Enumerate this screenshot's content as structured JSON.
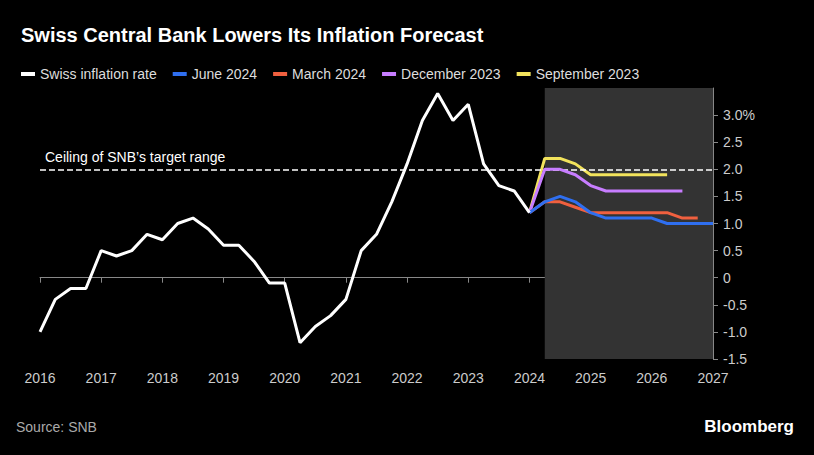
{
  "chart_data": {
    "type": "line",
    "title": "Swiss Central Bank Lowers Its Inflation Forecast",
    "source": "Source: SNB",
    "brand": "Bloomberg",
    "legend": "top-left",
    "grid": false,
    "x": [
      2016,
      2016.25,
      2016.5,
      2016.75,
      2017,
      2017.25,
      2017.5,
      2017.75,
      2018,
      2018.25,
      2018.5,
      2018.75,
      2019,
      2019.25,
      2019.5,
      2019.75,
      2020,
      2020.25,
      2020.5,
      2020.75,
      2021,
      2021.25,
      2021.5,
      2021.75,
      2022,
      2022.25,
      2022.5,
      2022.75,
      2023,
      2023.25,
      2023.5,
      2023.75,
      2024,
      2024.25,
      2024.5,
      2024.75,
      2025,
      2025.25,
      2025.5,
      2025.75,
      2026,
      2026.25,
      2026.5,
      2026.75,
      2027
    ],
    "xlim": [
      2016,
      2027
    ],
    "xticks": [
      2016,
      2017,
      2018,
      2019,
      2020,
      2021,
      2022,
      2023,
      2024,
      2025,
      2026,
      2027
    ],
    "ylim": [
      -1.5,
      3.5
    ],
    "yticks": [
      {
        "value": -1.5,
        "label": "-1.5"
      },
      {
        "value": -1,
        "label": "-1.0"
      },
      -0.5,
      0,
      0.5,
      {
        "value": 1,
        "label": "1.0"
      },
      1.5,
      {
        "value": 2,
        "label": "2.0"
      },
      2.5,
      {
        "value": 3,
        "label": "3.0%"
      }
    ],
    "reference_line": {
      "value": 2,
      "label": "Ceiling of SNB’s target range",
      "line_style": "dashed"
    },
    "shaded_x": [
      2024.25,
      2027
    ],
    "series": [
      {
        "name": "Swiss inflation rate",
        "color": "#ffffff",
        "values": [
          -1.0,
          -0.4,
          -0.2,
          -0.2,
          0.5,
          0.4,
          0.5,
          0.8,
          0.7,
          1.0,
          1.1,
          0.9,
          0.6,
          0.6,
          0.3,
          -0.1,
          -0.1,
          -1.2,
          -0.9,
          -0.7,
          -0.4,
          0.5,
          0.8,
          1.4,
          2.1,
          2.9,
          3.4,
          2.9,
          3.2,
          2.1,
          1.7,
          1.6,
          1.2,
          null,
          null,
          null,
          null,
          null,
          null,
          null,
          null,
          null,
          null,
          null,
          null
        ]
      },
      {
        "name": "June 2024",
        "color": "#2f6ff0",
        "values": [
          null,
          null,
          null,
          null,
          null,
          null,
          null,
          null,
          null,
          null,
          null,
          null,
          null,
          null,
          null,
          null,
          null,
          null,
          null,
          null,
          null,
          null,
          null,
          null,
          null,
          null,
          null,
          null,
          null,
          null,
          null,
          null,
          1.2,
          1.4,
          1.5,
          1.4,
          1.2,
          1.1,
          1.1,
          1.1,
          1.1,
          1.0,
          1.0,
          1.0,
          1.0
        ]
      },
      {
        "name": "March 2024",
        "color": "#f0603f",
        "values": [
          null,
          null,
          null,
          null,
          null,
          null,
          null,
          null,
          null,
          null,
          null,
          null,
          null,
          null,
          null,
          null,
          null,
          null,
          null,
          null,
          null,
          null,
          null,
          null,
          null,
          null,
          null,
          null,
          null,
          null,
          null,
          null,
          1.2,
          1.4,
          1.4,
          1.3,
          1.2,
          1.2,
          1.2,
          1.2,
          1.2,
          1.2,
          1.1,
          1.1,
          null
        ]
      },
      {
        "name": "December 2023",
        "color": "#c77dff",
        "values": [
          null,
          null,
          null,
          null,
          null,
          null,
          null,
          null,
          null,
          null,
          null,
          null,
          null,
          null,
          null,
          null,
          null,
          null,
          null,
          null,
          null,
          null,
          null,
          null,
          null,
          null,
          null,
          null,
          null,
          null,
          null,
          null,
          1.2,
          2.0,
          2.0,
          1.9,
          1.7,
          1.6,
          1.6,
          1.6,
          1.6,
          1.6,
          1.6,
          null,
          null
        ]
      },
      {
        "name": "September 2023",
        "color": "#f2e35c",
        "values": [
          null,
          null,
          null,
          null,
          null,
          null,
          null,
          null,
          null,
          null,
          null,
          null,
          null,
          null,
          null,
          null,
          null,
          null,
          null,
          null,
          null,
          null,
          null,
          null,
          null,
          null,
          null,
          null,
          null,
          null,
          null,
          null,
          1.2,
          2.2,
          2.2,
          2.1,
          1.9,
          1.9,
          1.9,
          1.9,
          1.9,
          1.9,
          null,
          null,
          null
        ]
      }
    ]
  }
}
